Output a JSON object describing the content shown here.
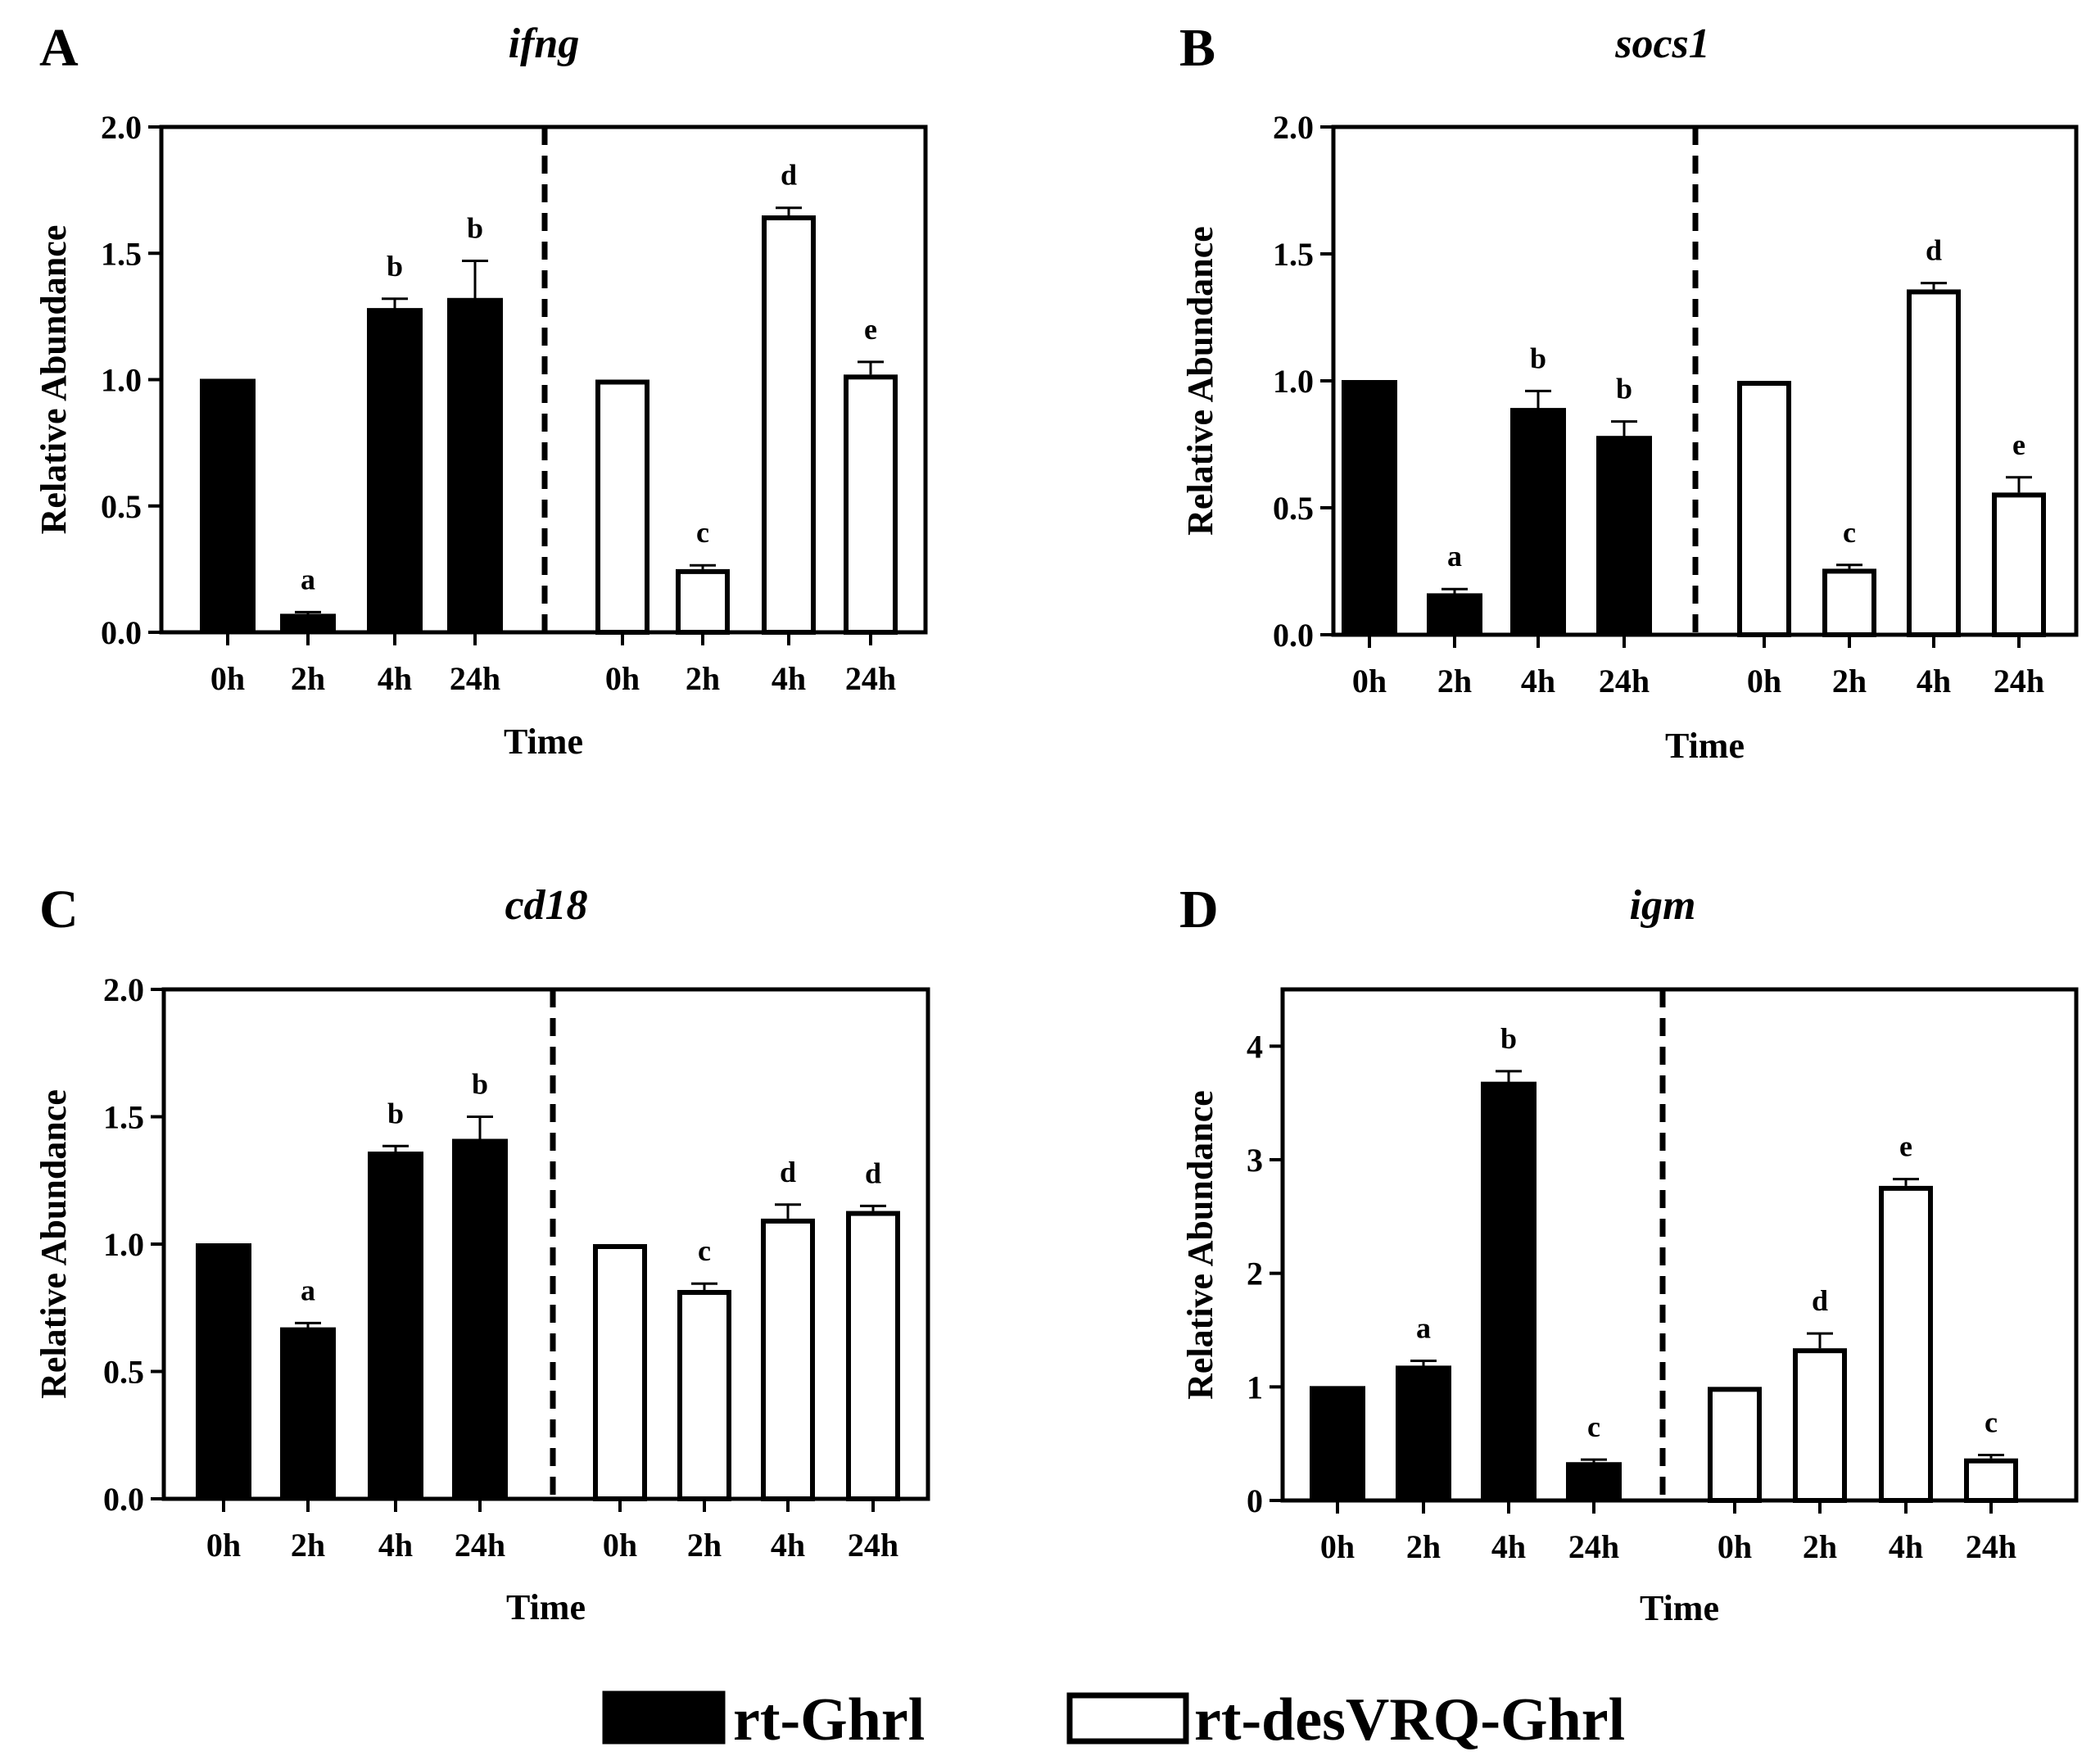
{
  "chart_data": [
    {
      "type": "bar",
      "panel_label": "A",
      "title": "ifng",
      "xlabel": "Time",
      "ylabel": "Relative Abundance",
      "ylim": [
        0,
        2.0
      ],
      "yticks": [
        0,
        0.5,
        1.0,
        1.5,
        2.0
      ],
      "ytick_labels": [
        "0.0",
        "0.5",
        "1.0",
        "1.5",
        "2.0"
      ],
      "categories": [
        "0h",
        "2h",
        "4h",
        "24h"
      ],
      "series": [
        {
          "name": "rt-Ghrl",
          "values": [
            1.0,
            0.07,
            1.28,
            1.32
          ],
          "errors": [
            0,
            0.01,
            0.04,
            0.15
          ],
          "labels": [
            "",
            "a",
            "b",
            "b"
          ]
        },
        {
          "name": "rt-desVRQ-Ghrl",
          "values": [
            1.0,
            0.25,
            1.65,
            1.02
          ],
          "errors": [
            0,
            0.015,
            0.03,
            0.05
          ],
          "labels": [
            "",
            "c",
            "d",
            "e"
          ]
        }
      ]
    },
    {
      "type": "bar",
      "panel_label": "B",
      "title": "socs1",
      "xlabel": "Time",
      "ylabel": "Relative Abundance",
      "ylim": [
        0,
        2.0
      ],
      "yticks": [
        0,
        0.5,
        1.0,
        1.5,
        2.0
      ],
      "ytick_labels": [
        "0.0",
        "0.5",
        "1.0",
        "1.5",
        "2.0"
      ],
      "categories": [
        "0h",
        "2h",
        "4h",
        "24h"
      ],
      "series": [
        {
          "name": "rt-Ghrl",
          "values": [
            1.0,
            0.16,
            0.89,
            0.78
          ],
          "errors": [
            0,
            0.02,
            0.07,
            0.06
          ],
          "labels": [
            "",
            "a",
            "b",
            "b"
          ]
        },
        {
          "name": "rt-desVRQ-Ghrl",
          "values": [
            1.0,
            0.26,
            1.36,
            0.56
          ],
          "errors": [
            0,
            0.015,
            0.025,
            0.06
          ],
          "labels": [
            "",
            "c",
            "d",
            "e"
          ]
        }
      ]
    },
    {
      "type": "bar",
      "panel_label": "C",
      "title": "cd18",
      "xlabel": "Time",
      "ylabel": "Relative Abundance",
      "ylim": [
        0,
        2.0
      ],
      "yticks": [
        0,
        0.5,
        1.0,
        1.5,
        2.0
      ],
      "ytick_labels": [
        "0.0",
        "0.5",
        "1.0",
        "1.5",
        "2.0"
      ],
      "categories": [
        "0h",
        "2h",
        "4h",
        "24h"
      ],
      "series": [
        {
          "name": "rt-Ghrl",
          "values": [
            1.0,
            0.67,
            1.36,
            1.41
          ],
          "errors": [
            0,
            0.02,
            0.025,
            0.09
          ],
          "labels": [
            "",
            "a",
            "b",
            "b"
          ]
        },
        {
          "name": "rt-desVRQ-Ghrl",
          "values": [
            1.0,
            0.82,
            1.1,
            1.13
          ],
          "errors": [
            0,
            0.025,
            0.055,
            0.02
          ],
          "labels": [
            "",
            "c",
            "d",
            "d"
          ]
        }
      ]
    },
    {
      "type": "bar",
      "panel_label": "D",
      "title": "igm",
      "xlabel": "Time",
      "ylabel": "Relative Abundance",
      "ylim": [
        0,
        4.5
      ],
      "yticks": [
        0,
        1,
        2,
        3,
        4
      ],
      "ytick_labels": [
        "0",
        "1",
        "2",
        "3",
        "4"
      ],
      "categories": [
        "0h",
        "2h",
        "4h",
        "24h"
      ],
      "series": [
        {
          "name": "rt-Ghrl",
          "values": [
            1.0,
            1.18,
            3.68,
            0.33
          ],
          "errors": [
            0,
            0.05,
            0.1,
            0.03
          ],
          "labels": [
            "",
            "a",
            "b",
            "c"
          ]
        },
        {
          "name": "rt-desVRQ-Ghrl",
          "values": [
            1.0,
            1.34,
            2.77,
            0.37
          ],
          "errors": [
            0,
            0.13,
            0.06,
            0.03
          ],
          "labels": [
            "",
            "d",
            "e",
            "c"
          ]
        }
      ]
    }
  ],
  "legend": {
    "items": [
      {
        "label": "rt-Ghrl",
        "fill": "#000000"
      },
      {
        "label": "rt-desVRQ-Ghrl",
        "fill": "#ffffff"
      }
    ]
  }
}
